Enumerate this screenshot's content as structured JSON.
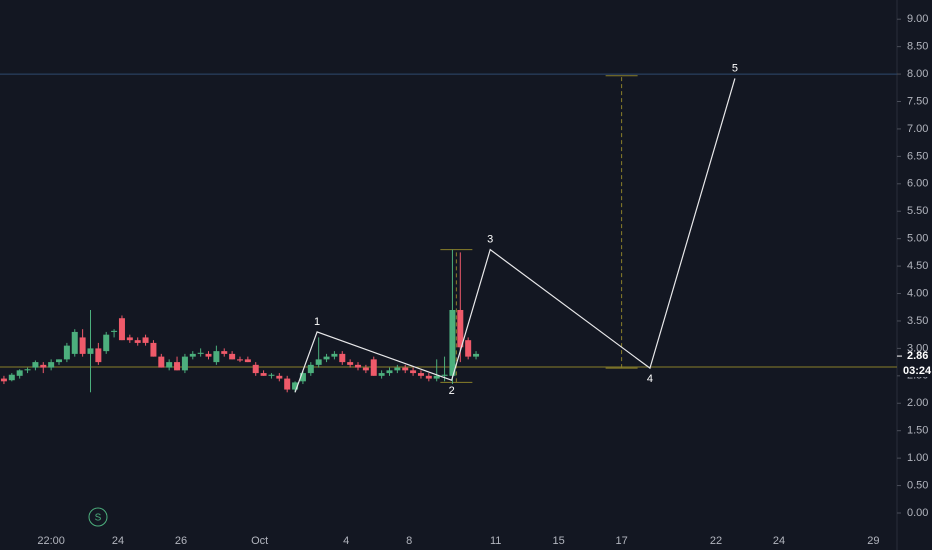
{
  "chart_data": {
    "type": "candlestick",
    "up_color": "#4caf7d",
    "down_color": "#ef5a6a",
    "wave_color": "#e8e8ea",
    "level_color": "#8a7f2a",
    "hline_color": "#2e4a6e",
    "xlim": [
      -0.5,
      113.5
    ],
    "ylim": [
      -0.31,
      9.35
    ],
    "yticks": [
      {
        "value": 0,
        "label": "0.00"
      },
      {
        "value": 0.5,
        "label": "0.50"
      },
      {
        "value": 1,
        "label": "1.00"
      },
      {
        "value": 1.5,
        "label": "1.50"
      },
      {
        "value": 2,
        "label": "2.00"
      },
      {
        "value": 2.5,
        "label": "2.50"
      },
      {
        "value": 3,
        "label": "3.00"
      },
      {
        "value": 3.5,
        "label": "3.50"
      },
      {
        "value": 4,
        "label": "4.00"
      },
      {
        "value": 4.5,
        "label": "4.50"
      },
      {
        "value": 5,
        "label": "5.00"
      },
      {
        "value": 5.5,
        "label": "5.50"
      },
      {
        "value": 6,
        "label": "6.00"
      },
      {
        "value": 6.5,
        "label": "6.50"
      },
      {
        "value": 7,
        "label": "7.00"
      },
      {
        "value": 7.5,
        "label": "7.50"
      },
      {
        "value": 8,
        "label": "8.00"
      },
      {
        "value": 8.5,
        "label": "8.50"
      },
      {
        "value": 9,
        "label": "9.00"
      }
    ],
    "xticks": [
      {
        "value": 6,
        "label": "22:00"
      },
      {
        "value": 14.5,
        "label": "24"
      },
      {
        "value": 22.5,
        "label": "26"
      },
      {
        "value": 32.5,
        "label": "Oct"
      },
      {
        "value": 43.5,
        "label": "4"
      },
      {
        "value": 51.5,
        "label": "8"
      },
      {
        "value": 62.5,
        "label": "11"
      },
      {
        "value": 70.5,
        "label": "15"
      },
      {
        "value": 78.5,
        "label": "17"
      },
      {
        "value": 90.5,
        "label": "22"
      },
      {
        "value": 98.5,
        "label": "24"
      },
      {
        "value": 110.5,
        "label": "29"
      }
    ],
    "x": [
      0,
      1,
      2,
      3,
      4,
      5,
      6,
      7,
      8,
      9,
      10,
      11,
      12,
      13,
      14,
      15,
      16,
      17,
      18,
      19,
      20,
      21,
      22,
      23,
      24,
      25,
      26,
      27,
      28,
      29,
      30,
      31,
      32,
      33,
      34,
      35,
      36,
      37,
      38,
      39,
      40,
      41,
      42,
      43,
      44,
      45,
      46,
      47,
      48,
      49,
      50,
      51,
      52,
      53,
      54,
      55,
      56,
      57,
      58,
      59,
      60
    ],
    "ohlc": [
      [
        2.45,
        2.5,
        2.35,
        2.4
      ],
      [
        2.42,
        2.55,
        2.4,
        2.52
      ],
      [
        2.5,
        2.62,
        2.45,
        2.6
      ],
      [
        2.6,
        2.65,
        2.55,
        2.62
      ],
      [
        2.65,
        2.78,
        2.6,
        2.75
      ],
      [
        2.7,
        2.75,
        2.55,
        2.65
      ],
      [
        2.65,
        2.8,
        2.6,
        2.75
      ],
      [
        2.75,
        2.8,
        2.7,
        2.8
      ],
      [
        2.8,
        3.1,
        2.75,
        3.05
      ],
      [
        2.9,
        3.35,
        2.85,
        3.3
      ],
      [
        3.2,
        3.35,
        2.85,
        2.9
      ],
      [
        2.9,
        3.7,
        2.2,
        3.0
      ],
      [
        3.0,
        3.1,
        2.7,
        2.75
      ],
      [
        2.95,
        3.3,
        2.9,
        3.25
      ],
      [
        3.3,
        3.35,
        3.2,
        3.32
      ],
      [
        3.55,
        3.6,
        3.15,
        3.15
      ],
      [
        3.2,
        3.25,
        3.1,
        3.15
      ],
      [
        3.15,
        3.2,
        3.05,
        3.1
      ],
      [
        3.2,
        3.25,
        3.05,
        3.1
      ],
      [
        3.1,
        3.15,
        2.85,
        2.85
      ],
      [
        2.85,
        2.9,
        2.65,
        2.65
      ],
      [
        2.65,
        2.8,
        2.6,
        2.75
      ],
      [
        2.75,
        2.85,
        2.6,
        2.6
      ],
      [
        2.6,
        2.9,
        2.55,
        2.85
      ],
      [
        2.85,
        2.95,
        2.8,
        2.9
      ],
      [
        2.9,
        3.0,
        2.85,
        2.92
      ],
      [
        2.9,
        2.95,
        2.8,
        2.85
      ],
      [
        2.75,
        3.05,
        2.7,
        2.95
      ],
      [
        2.95,
        3.0,
        2.85,
        2.9
      ],
      [
        2.9,
        2.95,
        2.8,
        2.8
      ],
      [
        2.8,
        2.85,
        2.75,
        2.78
      ],
      [
        2.8,
        2.85,
        2.75,
        2.75
      ],
      [
        2.7,
        2.75,
        2.5,
        2.55
      ],
      [
        2.55,
        2.6,
        2.5,
        2.5
      ],
      [
        2.5,
        2.55,
        2.45,
        2.52
      ],
      [
        2.5,
        2.55,
        2.4,
        2.45
      ],
      [
        2.45,
        2.5,
        2.2,
        2.25
      ],
      [
        2.25,
        2.4,
        2.2,
        2.38
      ],
      [
        2.4,
        2.6,
        2.35,
        2.55
      ],
      [
        2.55,
        2.75,
        2.5,
        2.7
      ],
      [
        2.7,
        3.2,
        2.65,
        2.8
      ],
      [
        2.8,
        2.9,
        2.75,
        2.85
      ],
      [
        2.85,
        2.95,
        2.8,
        2.9
      ],
      [
        2.9,
        2.95,
        2.7,
        2.75
      ],
      [
        2.75,
        2.8,
        2.65,
        2.7
      ],
      [
        2.7,
        2.75,
        2.6,
        2.65
      ],
      [
        2.65,
        2.7,
        2.55,
        2.6
      ],
      [
        2.8,
        2.85,
        2.5,
        2.5
      ],
      [
        2.5,
        2.6,
        2.45,
        2.55
      ],
      [
        2.55,
        2.65,
        2.5,
        2.6
      ],
      [
        2.6,
        2.7,
        2.55,
        2.65
      ],
      [
        2.65,
        2.7,
        2.55,
        2.6
      ],
      [
        2.6,
        2.65,
        2.5,
        2.55
      ],
      [
        2.55,
        2.6,
        2.45,
        2.5
      ],
      [
        2.5,
        2.55,
        2.4,
        2.45
      ],
      [
        2.45,
        2.8,
        2.4,
        2.5
      ],
      [
        2.5,
        2.85,
        2.4,
        2.52
      ],
      [
        2.5,
        4.8,
        2.35,
        3.7
      ],
      [
        3.7,
        4.75,
        2.75,
        3.02
      ],
      [
        3.15,
        3.2,
        2.8,
        2.85
      ],
      [
        2.85,
        2.95,
        2.8,
        2.9
      ]
    ],
    "wave": {
      "x": [
        37,
        39.8,
        56.9,
        61.8,
        82.1,
        92.9
      ],
      "values": [
        2.2,
        3.3,
        2.42,
        4.8,
        2.64,
        7.92
      ],
      "labels": [
        null,
        "1",
        "2",
        "3",
        "4",
        "5"
      ]
    },
    "ranges": [
      {
        "x": 57.5,
        "from": 2.38,
        "to": 4.8
      },
      {
        "x": 78.5,
        "from": 2.64,
        "to": 7.97
      }
    ],
    "target_level": 8.0,
    "support_level": 2.66,
    "last_price": 2.86,
    "last_price_label": "2.86",
    "countdown": "03:24",
    "symbol_badge": "S"
  }
}
